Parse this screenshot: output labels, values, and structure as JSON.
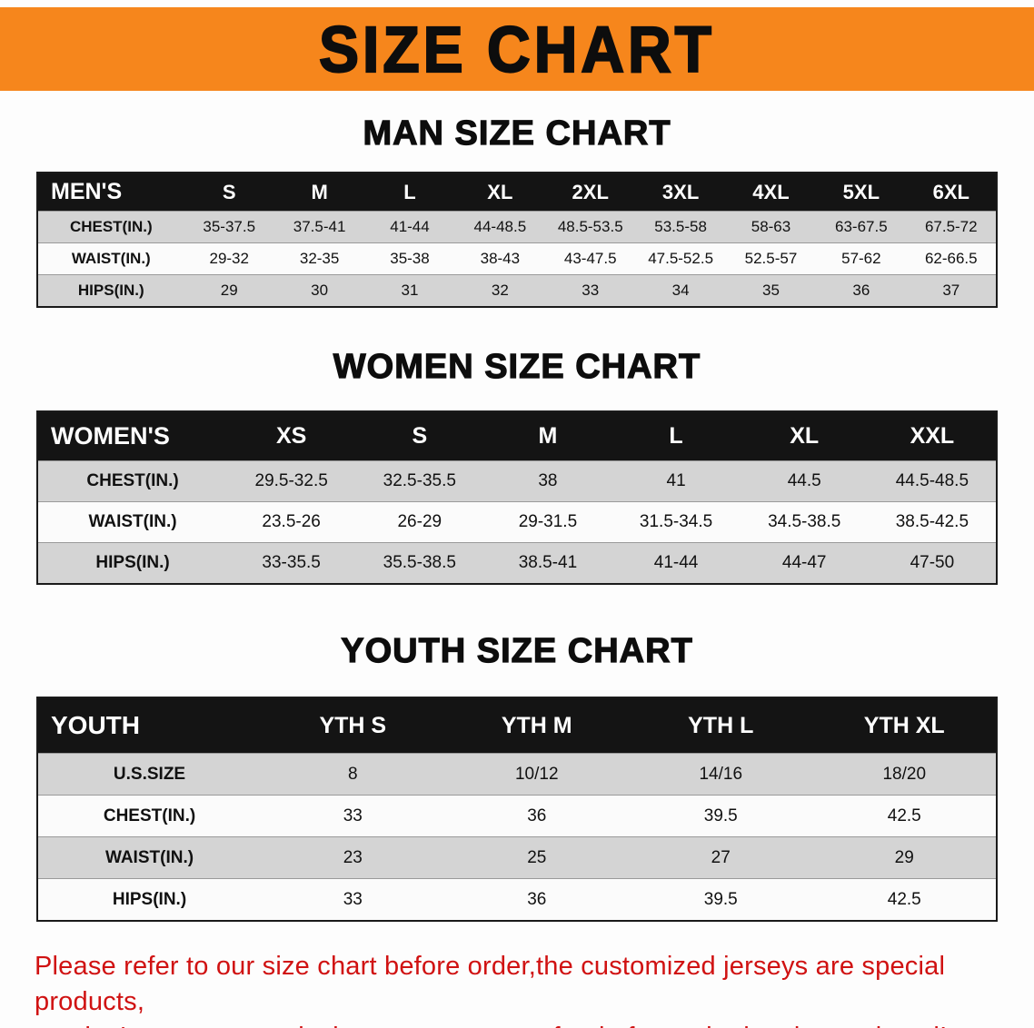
{
  "colors": {
    "banner_bg": "#f6861c",
    "header_row_bg": "#141414",
    "alt_row_bg": "#d4d4d4",
    "footer_text": "#d01212"
  },
  "banner": {
    "title": "SIZE CHART"
  },
  "sections": [
    {
      "heading": "MAN SIZE CHART",
      "table": {
        "header": [
          "MEN'S",
          "S",
          "M",
          "L",
          "XL",
          "2XL",
          "3XL",
          "4XL",
          "5XL",
          "6XL"
        ],
        "rows": [
          {
            "label": "CHEST(IN.)",
            "values": [
              "35-37.5",
              "37.5-41",
              "41-44",
              "44-48.5",
              "48.5-53.5",
              "53.5-58",
              "58-63",
              "63-67.5",
              "67.5-72"
            ]
          },
          {
            "label": "WAIST(IN.)",
            "values": [
              "29-32",
              "32-35",
              "35-38",
              "38-43",
              "43-47.5",
              "47.5-52.5",
              "52.5-57",
              "57-62",
              "62-66.5"
            ]
          },
          {
            "label": "HIPS(IN.)",
            "values": [
              "29",
              "30",
              "31",
              "32",
              "33",
              "34",
              "35",
              "36",
              "37"
            ]
          }
        ]
      }
    },
    {
      "heading": "WOMEN SIZE CHART",
      "table": {
        "header": [
          "WOMEN'S",
          "XS",
          "S",
          "M",
          "L",
          "XL",
          "XXL"
        ],
        "rows": [
          {
            "label": "CHEST(IN.)",
            "values": [
              "29.5-32.5",
              "32.5-35.5",
              "38",
              "41",
              "44.5",
              "44.5-48.5"
            ]
          },
          {
            "label": "WAIST(IN.)",
            "values": [
              "23.5-26",
              "26-29",
              "29-31.5",
              "31.5-34.5",
              "34.5-38.5",
              "38.5-42.5"
            ]
          },
          {
            "label": "HIPS(IN.)",
            "values": [
              "33-35.5",
              "35.5-38.5",
              "38.5-41",
              "41-44",
              "44-47",
              "47-50"
            ]
          }
        ]
      }
    },
    {
      "heading": "YOUTH SIZE CHART",
      "table": {
        "header": [
          "YOUTH",
          "YTH S",
          "YTH M",
          "YTH L",
          "YTH XL"
        ],
        "rows": [
          {
            "label": "U.S.SIZE",
            "values": [
              "8",
              "10/12",
              "14/16",
              "18/20"
            ]
          },
          {
            "label": "CHEST(IN.)",
            "values": [
              "33",
              "36",
              "39.5",
              "42.5"
            ]
          },
          {
            "label": "WAIST(IN.)",
            "values": [
              "23",
              "25",
              "27",
              "29"
            ]
          },
          {
            "label": "HIPS(IN.)",
            "values": [
              "33",
              "36",
              "39.5",
              "42.5"
            ]
          }
        ]
      }
    }
  ],
  "footer": {
    "line1": "Please refer to our size chart before order,the customized jerseys are special products,",
    "line2": "we don't accept cancel, change, teturn or refund after order has been placed!"
  }
}
